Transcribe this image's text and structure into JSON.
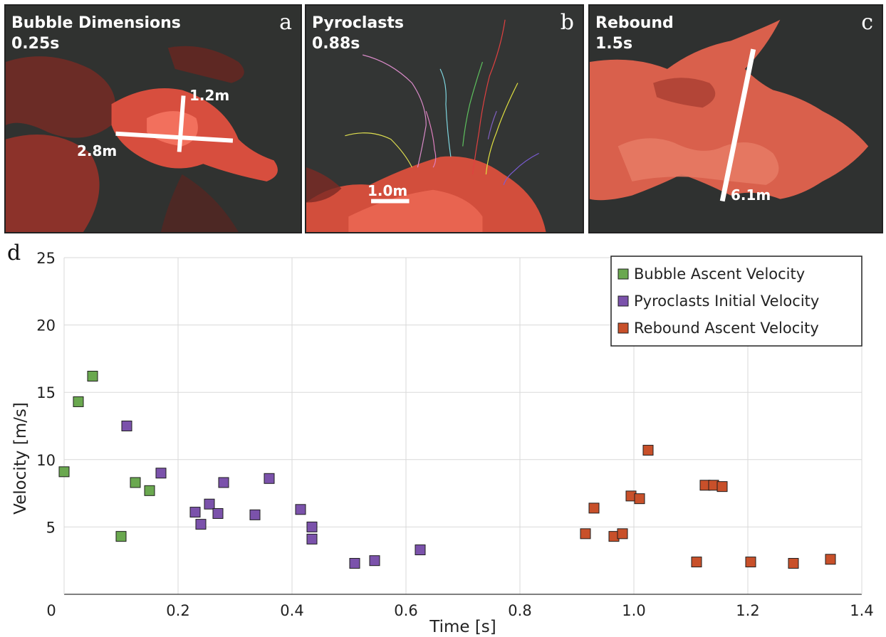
{
  "panels": [
    {
      "id": "a",
      "letter": "a",
      "title": "Bubble Dimensions",
      "time": "0.25s",
      "measurements": [
        "1.2m",
        "2.8m"
      ]
    },
    {
      "id": "b",
      "letter": "b",
      "title": "Pyroclasts",
      "time": "0.88s",
      "measurements": [
        "1.0m"
      ]
    },
    {
      "id": "c",
      "letter": "c",
      "title": "Rebound",
      "time": "1.5s",
      "measurements": [
        "6.1m"
      ]
    }
  ],
  "chart_letter": "d",
  "colors": {
    "bubble": "#6aa84f",
    "pyroclasts": "#7b52ab",
    "rebound": "#c8502a",
    "grid": "#d9d9d9",
    "axis": "#555555",
    "lava": "#d9523f",
    "dark_bg": "#2e2f2e"
  },
  "chart_data": {
    "type": "scatter",
    "xlabel": "Time [s]",
    "ylabel": "Velocity [m/s]",
    "xlim": [
      0,
      1.4
    ],
    "ylim": [
      0,
      25
    ],
    "xticks": [
      "0",
      "0.2",
      "0.4",
      "0.6",
      "0.8",
      "1.0",
      "1.2",
      "1.4"
    ],
    "yticks": [
      "5",
      "10",
      "15",
      "20",
      "25"
    ],
    "grid": true,
    "legend_position": "top-right",
    "series": [
      {
        "name": "Bubble Ascent Velocity",
        "color": "#6aa84f",
        "x": [
          0.0,
          0.025,
          0.05,
          0.1,
          0.125,
          0.15
        ],
        "y": [
          9.1,
          14.3,
          16.2,
          4.3,
          8.3,
          7.7
        ]
      },
      {
        "name": "Pyroclasts Initial Velocity",
        "color": "#7b52ab",
        "x": [
          0.11,
          0.17,
          0.23,
          0.24,
          0.255,
          0.27,
          0.28,
          0.335,
          0.36,
          0.415,
          0.435,
          0.435,
          0.51,
          0.545,
          0.625
        ],
        "y": [
          12.5,
          9.0,
          6.1,
          5.2,
          6.7,
          6.0,
          8.3,
          5.9,
          8.6,
          6.3,
          5.0,
          4.1,
          2.3,
          2.5,
          3.3
        ]
      },
      {
        "name": "Rebound Ascent Velocity",
        "color": "#c8502a",
        "x": [
          0.915,
          0.93,
          0.965,
          0.98,
          0.995,
          1.01,
          1.025,
          1.11,
          1.125,
          1.14,
          1.155,
          1.205,
          1.28,
          1.345
        ],
        "y": [
          4.5,
          6.4,
          4.3,
          4.5,
          7.3,
          7.1,
          10.7,
          2.4,
          8.1,
          8.1,
          8.0,
          2.4,
          2.3,
          2.6
        ]
      }
    ]
  }
}
